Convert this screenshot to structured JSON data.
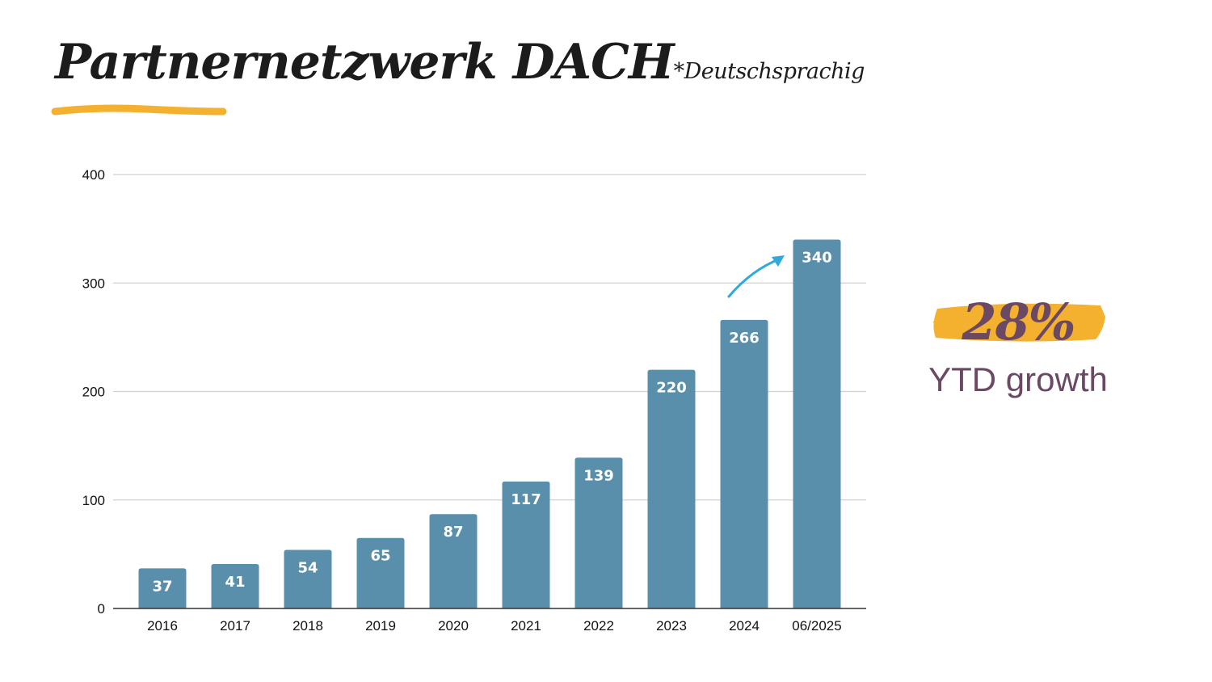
{
  "header": {
    "title": "Partnernetzwerk DACH",
    "note": "*Deutschsprachig"
  },
  "callout": {
    "value": "28%",
    "label": "YTD growth"
  },
  "colors": {
    "bar": "#5a8fac",
    "accent_yellow": "#f4b12f",
    "growth_text": "#6b4863",
    "arrow": "#2fa8e0",
    "gridline": "#d0d0d0"
  },
  "chart_data": {
    "type": "bar",
    "categories": [
      "2016",
      "2017",
      "2018",
      "2019",
      "2020",
      "2021",
      "2022",
      "2023",
      "2024",
      "06/2025"
    ],
    "values": [
      37,
      41,
      54,
      65,
      87,
      117,
      139,
      220,
      266,
      340
    ],
    "ylim": [
      0,
      400
    ],
    "yticks": [
      0,
      100,
      200,
      300,
      400
    ],
    "grid": true,
    "data_labels": true,
    "legend": "none"
  }
}
